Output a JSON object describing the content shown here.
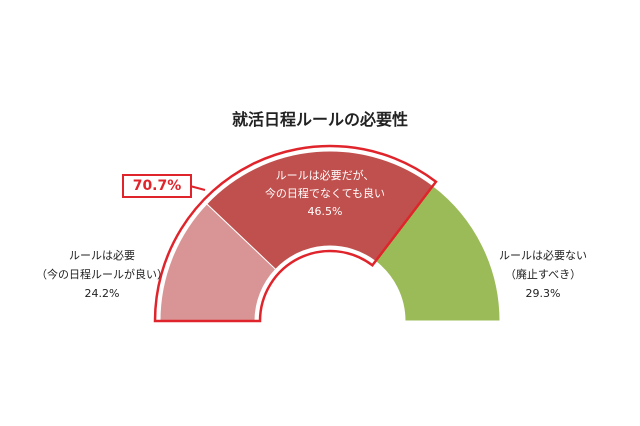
{
  "chart_data": {
    "type": "pie",
    "variant": "semicircle-donut",
    "title": "就活日程ルールの必要性",
    "slices": [
      {
        "label_lines": [
          "ルールは必要",
          "（今の日程ルールが良い）"
        ],
        "value": 24.2,
        "value_text": "24.2%",
        "color": "#d99595"
      },
      {
        "label_lines": [
          "ルールは必要だが、",
          "今の日程でなくても良い"
        ],
        "value": 46.5,
        "value_text": "46.5%",
        "color": "#c0504d"
      },
      {
        "label_lines": [
          "ルールは必要ない",
          "（廃止すべき）"
        ],
        "value": 29.3,
        "value_text": "29.3%",
        "color": "#9bbb59"
      }
    ],
    "highlight": {
      "value": 70.7,
      "value_text": "70.7%",
      "color": "#e0242b"
    }
  }
}
